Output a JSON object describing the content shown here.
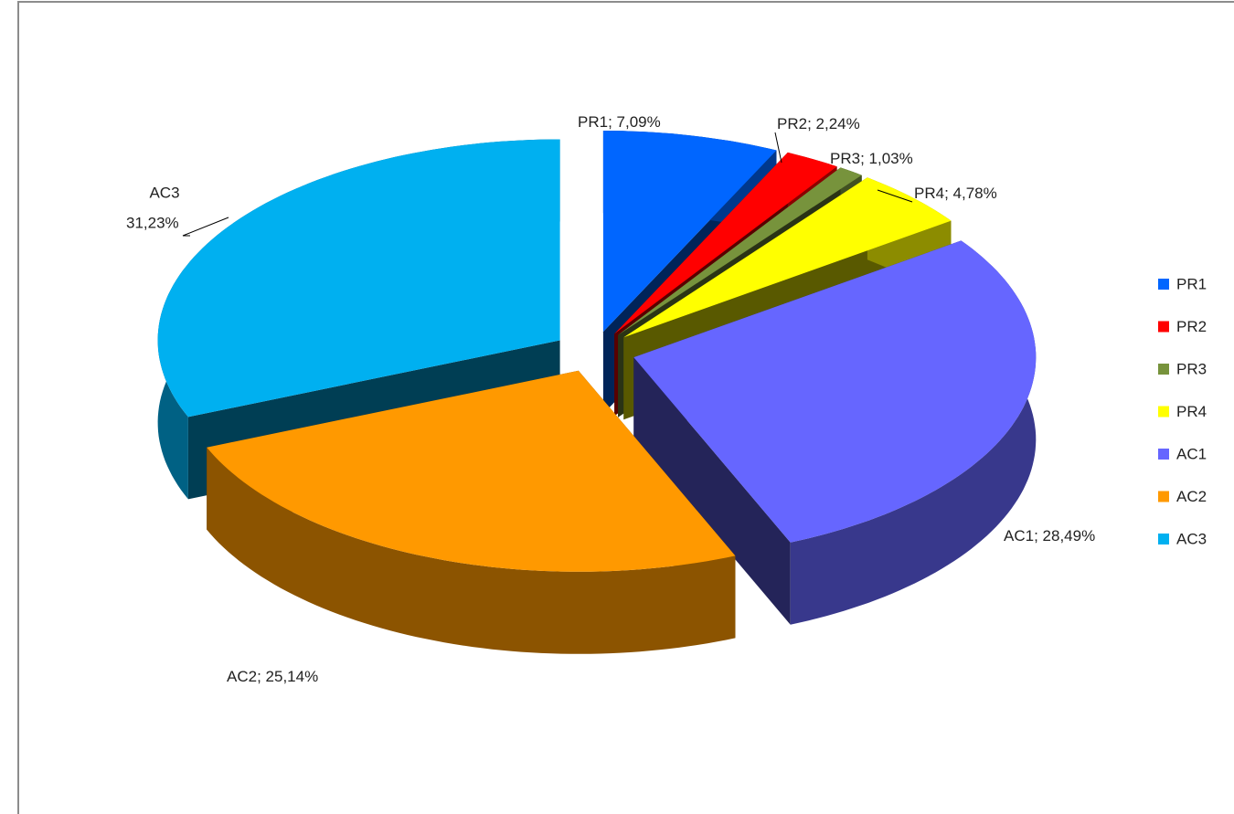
{
  "chart_data": {
    "type": "pie3d",
    "categories": [
      "PR1",
      "PR2",
      "PR3",
      "PR4",
      "AC1",
      "AC2",
      "AC3"
    ],
    "values": [
      7.09,
      2.24,
      1.03,
      4.78,
      28.49,
      25.14,
      31.23
    ],
    "value_labels": [
      "7,09%",
      "2,24%",
      "1,03%",
      "4,78%",
      "28,49%",
      "25,14%",
      "31,23%"
    ],
    "label_separator": "; ",
    "colors": [
      "#0066ff",
      "#ff0000",
      "#77933c",
      "#ffff00",
      "#6666ff",
      "#ff9900",
      "#00b0f0"
    ],
    "legend": "right"
  }
}
